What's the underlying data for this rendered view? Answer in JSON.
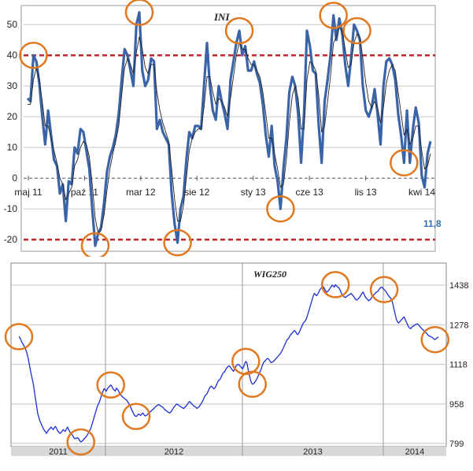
{
  "colors": {
    "ini_line": "#3a64a8",
    "ini_ma": "#222222",
    "threshold": "#c0282c",
    "circle": "#e07820",
    "wig_line": "#1c2fd0",
    "last_value": "#2f6fb0",
    "grid": "#c8c8c8",
    "axis_band": "#d8d8d8"
  },
  "chart_data": [
    {
      "type": "line",
      "title": "INI",
      "x_tick_labels": [
        "maj 11",
        "paź 11",
        "mar 12",
        "sie 12",
        "sty 13",
        "cze 13",
        "lis 13",
        "kwi 14"
      ],
      "y_tick_labels": [
        "-20",
        "-10",
        "0",
        "10",
        "20",
        "30",
        "40",
        "50"
      ],
      "ylim": [
        -22,
        58
      ],
      "grid": true,
      "reference_lines": [
        40,
        -20
      ],
      "last_value_label": "11,8",
      "series": [
        {
          "style": "thick",
          "values": [
            26,
            25,
            40,
            38,
            31,
            20,
            11,
            22,
            14,
            6,
            4,
            -5,
            -2,
            -14,
            -1,
            -2,
            10,
            8,
            16,
            15,
            9,
            3,
            -10,
            -22,
            -18,
            -16,
            -8,
            2,
            7,
            10,
            14,
            21,
            32,
            42,
            40,
            35,
            30,
            50,
            54,
            35,
            30,
            32,
            39,
            38,
            16,
            19,
            15,
            13,
            11,
            -5,
            -15,
            -21,
            -10,
            -6,
            6,
            15,
            13,
            17,
            17,
            16,
            30,
            44,
            30,
            22,
            19,
            30,
            25,
            21,
            16,
            32,
            38,
            44,
            48,
            40,
            43,
            35,
            35,
            38,
            34,
            31,
            24,
            14,
            7,
            17,
            4,
            -1,
            -10,
            3,
            13,
            28,
            33,
            30,
            21,
            5,
            21,
            48,
            43,
            35,
            34,
            17,
            5,
            25,
            32,
            40,
            53,
            45,
            52,
            47,
            37,
            30,
            39,
            50,
            48,
            45,
            30,
            22,
            20,
            23,
            29,
            21,
            11,
            30,
            38,
            39,
            37,
            32,
            21,
            14,
            5,
            22,
            5,
            16,
            23,
            18,
            1,
            -3,
            8,
            12
          ],
          "last_value": 11.8
        },
        {
          "style": "thin moving average",
          "values": [
            24,
            24,
            32,
            36,
            32,
            25,
            17,
            17,
            13,
            9,
            5,
            0,
            -2,
            -7,
            -5,
            -3,
            4,
            6,
            10,
            12,
            11,
            7,
            -2,
            -13,
            -18,
            -17,
            -12,
            -4,
            3,
            8,
            12,
            17,
            27,
            36,
            39,
            37,
            34,
            41,
            46,
            42,
            36,
            34,
            37,
            37,
            28,
            22,
            18,
            15,
            12,
            3,
            -7,
            -14,
            -14,
            -9,
            0,
            9,
            13,
            15,
            16,
            16,
            23,
            33,
            33,
            28,
            24,
            26,
            25,
            23,
            20,
            26,
            33,
            40,
            44,
            42,
            42,
            39,
            37,
            37,
            35,
            33,
            28,
            21,
            13,
            13,
            8,
            3,
            -3,
            -2,
            6,
            18,
            27,
            30,
            26,
            16,
            16,
            32,
            38,
            37,
            35,
            27,
            15,
            17,
            25,
            33,
            44,
            46,
            49,
            48,
            42,
            36,
            37,
            44,
            47,
            46,
            39,
            31,
            25,
            23,
            25,
            23,
            18,
            23,
            31,
            35,
            37,
            35,
            28,
            21,
            14,
            16,
            11,
            13,
            17,
            17,
            9,
            3,
            4,
            8
          ]
        }
      ]
    },
    {
      "type": "line",
      "title": "WIG250",
      "x_tick_labels": [
        "2011",
        "2012",
        "2013",
        "2014"
      ],
      "y_tick_labels": [
        "799",
        "958",
        "1118",
        "1278",
        "1438"
      ],
      "ylim": [
        799,
        1438
      ],
      "grid": true,
      "series": [
        {
          "values": [
            1230,
            1225,
            1215,
            1205,
            1198,
            1190,
            1180,
            1168,
            1150,
            1128,
            1104,
            1080,
            1060,
            1040,
            1010,
            978,
            950,
            920,
            905,
            890,
            880,
            870,
            860,
            852,
            845,
            840,
            848,
            855,
            858,
            865,
            860,
            855,
            862,
            868,
            860,
            850,
            845,
            840,
            842,
            848,
            855,
            850,
            848,
            858,
            865,
            855,
            845,
            840,
            835,
            828,
            820,
            818,
            820,
            822,
            818,
            810,
            805,
            808,
            812,
            818,
            822,
            828,
            835,
            842,
            850,
            860,
            875,
            890,
            905,
            920,
            935,
            950,
            960,
            970,
            985,
            998,
            1010,
            1020,
            1015,
            1010,
            1020,
            1025,
            1030,
            1035,
            1030,
            1020,
            1015,
            1010,
            1022,
            1018,
            1012,
            1000,
            995,
            990,
            985,
            982,
            978,
            975,
            970,
            962,
            955,
            945,
            935,
            925,
            915,
            910,
            908,
            912,
            918,
            915,
            912,
            918,
            922,
            915,
            910,
            912,
            915,
            920,
            925,
            928,
            932,
            936,
            940,
            945,
            950,
            952,
            955,
            954,
            950,
            948,
            945,
            940,
            935,
            932,
            928,
            925,
            922,
            925,
            930,
            938,
            945,
            950,
            956,
            958,
            955,
            950,
            948,
            945,
            942,
            940,
            945,
            950,
            955,
            962,
            968,
            965,
            960,
            955,
            950,
            948,
            945,
            940,
            945,
            948,
            955,
            962,
            970,
            980,
            990,
            995,
            1000,
            1010,
            1020,
            1028,
            1030,
            1025,
            1020,
            1022,
            1030,
            1040,
            1050,
            1055,
            1060,
            1070,
            1080,
            1085,
            1090,
            1098,
            1105,
            1110,
            1112,
            1108,
            1100,
            1095,
            1090,
            1100,
            1110,
            1115,
            1118,
            1116,
            1110,
            1105,
            1100,
            1108,
            1120,
            1130,
            1125,
            1100,
            1080,
            1060,
            1045,
            1038,
            1040,
            1045,
            1052,
            1060,
            1070,
            1080,
            1090,
            1100,
            1115,
            1125,
            1130,
            1135,
            1140,
            1142,
            1138,
            1130,
            1125,
            1128,
            1130,
            1135,
            1140,
            1145,
            1150,
            1155,
            1160,
            1168,
            1175,
            1185,
            1195,
            1205,
            1215,
            1220,
            1225,
            1235,
            1240,
            1245,
            1250,
            1255,
            1250,
            1242,
            1238,
            1245,
            1255,
            1265,
            1275,
            1285,
            1290,
            1295,
            1305,
            1320,
            1335,
            1350,
            1365,
            1380,
            1395,
            1405,
            1400,
            1395,
            1402,
            1410,
            1420,
            1425,
            1430,
            1432,
            1425,
            1415,
            1410,
            1412,
            1418,
            1425,
            1430,
            1438,
            1435,
            1430,
            1440,
            1435,
            1430,
            1428,
            1420,
            1410,
            1400,
            1395,
            1390,
            1388,
            1392,
            1395,
            1398,
            1400,
            1405,
            1400,
            1395,
            1388,
            1382,
            1378,
            1380,
            1385,
            1390,
            1398,
            1405,
            1410,
            1400,
            1390,
            1385,
            1380,
            1375,
            1378,
            1382,
            1390,
            1395,
            1400,
            1405,
            1410,
            1412,
            1418,
            1425,
            1428,
            1430,
            1425,
            1420,
            1415,
            1410,
            1402,
            1395,
            1390,
            1385,
            1375,
            1360,
            1340,
            1320,
            1300,
            1290,
            1285,
            1290,
            1295,
            1300,
            1305,
            1310,
            1300,
            1290,
            1280,
            1270,
            1265,
            1262,
            1268,
            1272,
            1275,
            1278,
            1280,
            1282,
            1278,
            1272,
            1268,
            1262,
            1258,
            1255,
            1250,
            1245,
            1240,
            1235,
            1232,
            1230,
            1228,
            1225,
            1220,
            1218,
            1222,
            1226,
            1229
          ]
        }
      ]
    }
  ]
}
